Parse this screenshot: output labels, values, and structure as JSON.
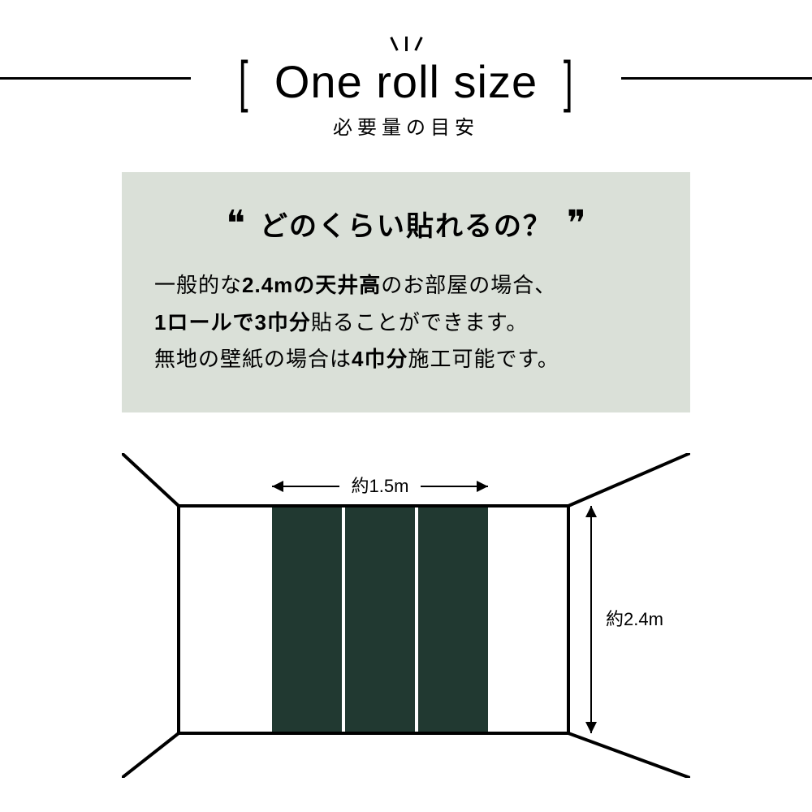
{
  "header": {
    "title": "One roll size",
    "subtitle": "必要量の目安"
  },
  "info": {
    "quote_left": "❝",
    "quote_right": "❞",
    "question": "どのくらい貼れるの？",
    "line1_a": "一般的な",
    "line1_b": "2.4mの天井高",
    "line1_c": "のお部屋の場合、",
    "line2_a": "1ロールで3巾分",
    "line2_b": "貼ることができます。",
    "line3_a": "無地の壁紙の場合は",
    "line3_b": "4巾分",
    "line3_c": "施工可能です。"
  },
  "diagram": {
    "width_label": "約1.5m",
    "height_label": "約2.4m",
    "colors": {
      "panel": "#213931",
      "line": "#000000",
      "bg": "#ffffff"
    },
    "line_width": 4,
    "panel_gap": 4,
    "label_fontsize": 22
  }
}
